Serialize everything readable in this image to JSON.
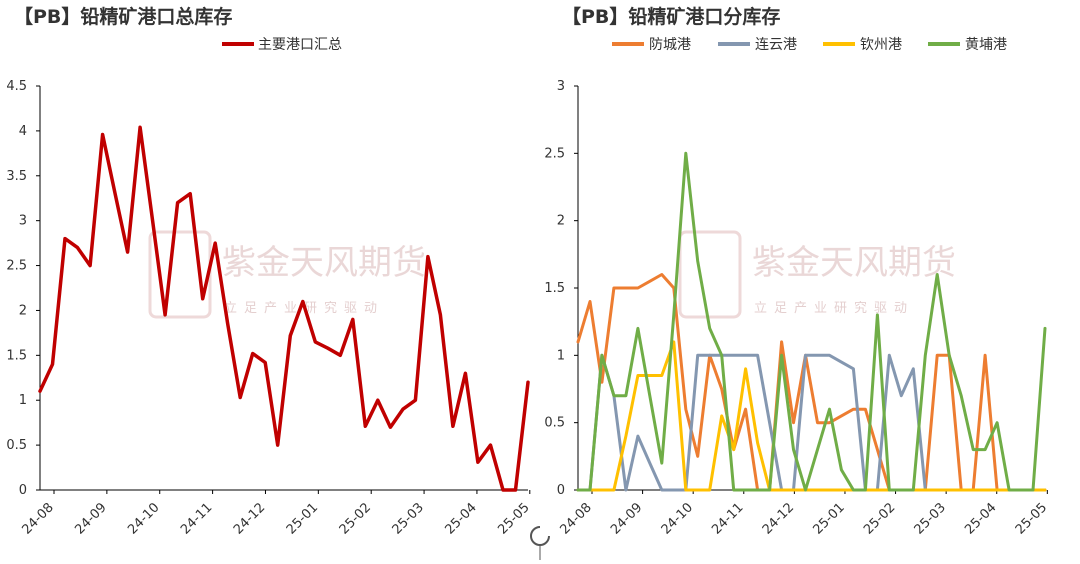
{
  "colors": {
    "left_line": "#c00000",
    "fangcheng": "#ed7d31",
    "lianyun": "#8497b0",
    "qinzhou": "#ffc000",
    "huangpu": "#70ad47",
    "axis": "#000000",
    "watermark": "#c9a0a0"
  },
  "watermark": {
    "brand": "紫金天风期货",
    "tagline": "立足产业研究驱动"
  },
  "chart_data": [
    {
      "type": "line",
      "title": "【PB】铅精矿港口总库存",
      "x_ticks": [
        "24-08",
        "24-09",
        "24-10",
        "24-11",
        "24-12",
        "25-01",
        "25-02",
        "25-03",
        "25-04",
        "25-05"
      ],
      "ylim": [
        0,
        4.5
      ],
      "y_ticks": [
        "0",
        "0.5",
        "1",
        "1.5",
        "2",
        "2.5",
        "3",
        "3.5",
        "4",
        "4.5"
      ],
      "grid": false,
      "legend": "top",
      "series": [
        {
          "name": "主要港口汇总",
          "color_key": "left_line",
          "values": [
            1.1,
            1.4,
            2.8,
            2.7,
            2.5,
            3.96,
            3.3,
            2.65,
            4.04,
            3.0,
            1.95,
            3.2,
            3.3,
            2.13,
            2.75,
            1.85,
            1.03,
            1.52,
            1.42,
            0.5,
            1.72,
            2.1,
            1.65,
            1.58,
            1.5,
            1.9,
            0.71,
            1.0,
            0.7,
            0.9,
            1.0,
            2.6,
            1.95,
            0.71,
            1.3,
            0.31,
            0.5,
            0.0,
            0.0,
            1.2
          ]
        }
      ]
    },
    {
      "type": "line",
      "title": "【PB】铅精矿港口分库存",
      "x_ticks": [
        "24-08",
        "24-09",
        "24-10",
        "24-11",
        "24-12",
        "25-01",
        "25-02",
        "25-03",
        "25-04",
        "25-05"
      ],
      "ylim": [
        0,
        3
      ],
      "y_ticks": [
        "0",
        "0.5",
        "1",
        "1.5",
        "2",
        "2.5",
        "3"
      ],
      "grid": false,
      "legend": "top",
      "series": [
        {
          "name": "防城港",
          "color_key": "fangcheng",
          "values": [
            1.1,
            1.4,
            0.8,
            1.5,
            1.5,
            1.5,
            1.55,
            1.6,
            1.5,
            0.6,
            0.25,
            1.0,
            0.75,
            0.3,
            0.6,
            0.0,
            0.0,
            1.1,
            0.5,
            1.0,
            0.5,
            0.5,
            0.55,
            0.6,
            0.6,
            0.3,
            0.0,
            0.0,
            0.0,
            0.0,
            1.0,
            1.0,
            0.0,
            0.0,
            1.0,
            0.0,
            0.0,
            0.0,
            0.0,
            0.0
          ]
        },
        {
          "name": "连云港",
          "color_key": "lianyun",
          "values": [
            0.0,
            0.0,
            1.0,
            0.7,
            0.0,
            0.4,
            0.2,
            0.0,
            0.0,
            0.0,
            1.0,
            1.0,
            1.0,
            1.0,
            1.0,
            1.0,
            0.5,
            0.0,
            0.0,
            1.0,
            1.0,
            1.0,
            0.95,
            0.9,
            0.0,
            0.0,
            1.0,
            0.7,
            0.9,
            0.0,
            0.0,
            0.0,
            0.0,
            0.0,
            0.0,
            0.0,
            0.0,
            0.0,
            0.0,
            0.0
          ]
        },
        {
          "name": "钦州港",
          "color_key": "qinzhou",
          "values": [
            0.0,
            0.0,
            0.0,
            0.0,
            0.4,
            0.85,
            0.85,
            0.85,
            1.1,
            0.0,
            0.0,
            0.0,
            0.55,
            0.3,
            0.9,
            0.35,
            0.0,
            0.0,
            0.0,
            0.0,
            0.0,
            0.0,
            0.0,
            0.0,
            0.0,
            0.0,
            0.0,
            0.0,
            0.0,
            0.0,
            0.0,
            0.0,
            0.0,
            0.0,
            0.0,
            0.0,
            0.0,
            0.0,
            0.0,
            0.0
          ]
        },
        {
          "name": "黄埔港",
          "color_key": "huangpu",
          "values": [
            0.0,
            0.0,
            1.0,
            0.7,
            0.7,
            1.2,
            0.7,
            0.2,
            1.3,
            2.5,
            1.7,
            1.2,
            1.0,
            0.0,
            0.0,
            0.0,
            0.0,
            1.0,
            0.3,
            0.0,
            0.3,
            0.6,
            0.15,
            0.0,
            0.0,
            1.3,
            0.0,
            0.0,
            0.0,
            1.0,
            1.6,
            1.0,
            0.7,
            0.3,
            0.3,
            0.5,
            0.0,
            0.0,
            0.0,
            1.2
          ]
        }
      ]
    }
  ]
}
